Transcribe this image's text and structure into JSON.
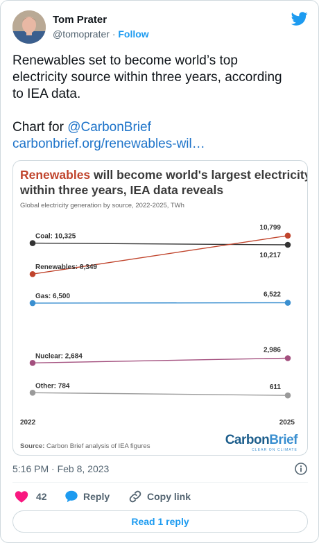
{
  "user": {
    "display_name": "Tom Prater",
    "handle": "@tomoprater",
    "separator": "·",
    "follow_label": "Follow"
  },
  "tweet": {
    "text_line1": "Renewables set to become world’s top",
    "text_line2": "electricity source within three years, according",
    "text_line3": "to IEA data.",
    "chart_for": "Chart for ",
    "mention": "@CarbonBrief",
    "link": "carbonbrief.org/renewables-wil…"
  },
  "card": {
    "title_highlight": "Renewables",
    "title_rest": " will become world's largest electricity source",
    "title_line2": "within three years, IEA data reveals",
    "subtitle": "Global electricity generation by source, 2022-2025, TWh",
    "source_label": "Source:",
    "source_text": " Carbon Brief analysis of IEA figures",
    "brand_carbon": "Carbon",
    "brand_brief": "Brief",
    "brand_tagline": "CLEAR ON CLIMATE"
  },
  "chart_data": {
    "type": "line",
    "title": "Renewables will become world's largest electricity source within three years, IEA data reveals",
    "subtitle": "Global electricity generation by source, 2022-2025, TWh",
    "x": [
      "2022",
      "2025"
    ],
    "series": [
      {
        "name": "Coal",
        "values": [
          10325,
          10217
        ],
        "color": "#333333",
        "start_label": "Coal: 10,325",
        "end_label": "10,217"
      },
      {
        "name": "Renewables",
        "values": [
          8349,
          10799
        ],
        "color": "#c0442c",
        "start_label": "Renewables: 8,349",
        "end_label": "10,799"
      },
      {
        "name": "Gas",
        "values": [
          6500,
          6522
        ],
        "color": "#3a8fd0",
        "start_label": "Gas: 6,500",
        "end_label": "6,522"
      },
      {
        "name": "Nuclear",
        "values": [
          2684,
          2986
        ],
        "color": "#a34f7e",
        "start_label": "Nuclear: 2,684",
        "end_label": "2,986"
      },
      {
        "name": "Other",
        "values": [
          784,
          611
        ],
        "color": "#9a9a9a",
        "start_label": "Other: 784",
        "end_label": "611"
      }
    ],
    "ylim": [
      0,
      11500
    ],
    "grid": false
  },
  "meta": {
    "time": "5:16 PM",
    "separator": "·",
    "date": "Feb 8, 2023"
  },
  "actions": {
    "likes_count": "42",
    "reply_label": "Reply",
    "copy_label": "Copy link"
  },
  "read_reply_label": "Read 1 reply",
  "colors": {
    "accent": "#1d9bf0",
    "like": "#f91880",
    "title_red": "#c0442c"
  }
}
